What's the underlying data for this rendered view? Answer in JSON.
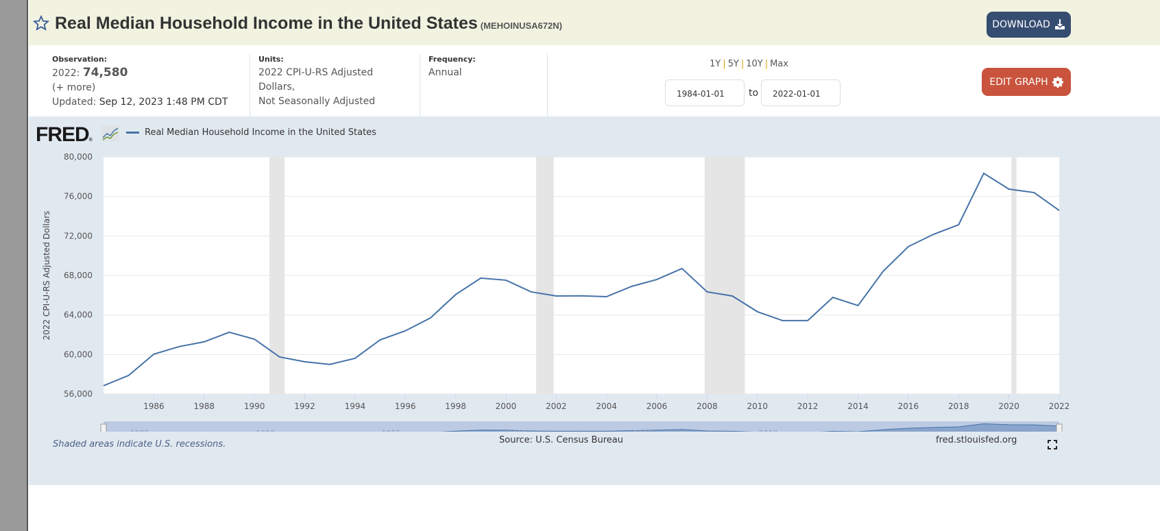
{
  "header": {
    "title": "Real Median Household Income in the United States",
    "series_id": "(MEHOINUSA672N)",
    "download_label": "DOWNLOAD"
  },
  "info": {
    "observation_label": "Observation:",
    "observation_year": "2022:",
    "observation_value": "74,580",
    "more": "(+ more)",
    "updated_label": "Updated:",
    "updated_value": "Sep 12, 2023 1:48 PM CDT",
    "units_label": "Units:",
    "units_line1": "2022 CPI-U-RS Adjusted",
    "units_line2": "Dollars,",
    "units_line3": "Not Seasonally Adjusted",
    "frequency_label": "Frequency:",
    "frequency_value": "Annual"
  },
  "range": {
    "options": [
      "1Y",
      "5Y",
      "10Y",
      "Max"
    ],
    "start": "1984-01-01",
    "to": "to",
    "end": "2022-01-01",
    "edit_label": "EDIT GRAPH"
  },
  "footer": {
    "recession_note": "Shaded areas indicate U.S. recessions.",
    "source": "Source: U.S. Census Bureau",
    "site": "fred.stlouisfed.org"
  },
  "logo": "FRED",
  "colors": {
    "line": "#4572a7",
    "recession": "#e5e5e5",
    "panel": "#e1e9f0",
    "download": "#364d72",
    "edit": "#c9533c"
  },
  "chart_data": {
    "type": "line",
    "legend": "Real Median Household Income in the United States",
    "ylabel": "2022 CPI-U-RS Adjusted Dollars",
    "ylim": [
      56000,
      80000
    ],
    "yticks": [
      56000,
      60000,
      64000,
      68000,
      72000,
      76000,
      80000
    ],
    "ytick_labels": [
      "56,000",
      "60,000",
      "64,000",
      "68,000",
      "72,000",
      "76,000",
      "80,000"
    ],
    "xlim": [
      1984,
      2022
    ],
    "xticks": [
      1986,
      1988,
      1990,
      1992,
      1994,
      1996,
      1998,
      2000,
      2002,
      2004,
      2006,
      2008,
      2010,
      2012,
      2014,
      2016,
      2018,
      2020,
      2022
    ],
    "navigator_labels": [
      "1985",
      "1990",
      "1995",
      "2000",
      "2005",
      "2010",
      "2015",
      "2020"
    ],
    "x": [
      1984,
      1985,
      1986,
      1987,
      1988,
      1989,
      1990,
      1991,
      1992,
      1993,
      1994,
      1995,
      1996,
      1997,
      1998,
      1999,
      2000,
      2001,
      2002,
      2003,
      2004,
      2005,
      2006,
      2007,
      2008,
      2009,
      2010,
      2011,
      2012,
      2013,
      2014,
      2015,
      2016,
      2017,
      2018,
      2019,
      2020,
      2021,
      2022
    ],
    "y": [
      56840,
      57880,
      60030,
      60790,
      61280,
      62250,
      61550,
      59750,
      59260,
      58990,
      59610,
      61480,
      62390,
      63700,
      66060,
      67730,
      67520,
      66340,
      65920,
      65940,
      65850,
      66890,
      67590,
      68700,
      66340,
      65920,
      64330,
      63430,
      63430,
      65780,
      64950,
      68420,
      70920,
      72160,
      73130,
      78340,
      76740,
      76390,
      74580
    ],
    "recessions": [
      [
        1990.6,
        1991.2
      ],
      [
        2001.2,
        2001.9
      ],
      [
        2007.9,
        2009.5
      ],
      [
        2020.1,
        2020.3
      ]
    ],
    "grid": true
  }
}
